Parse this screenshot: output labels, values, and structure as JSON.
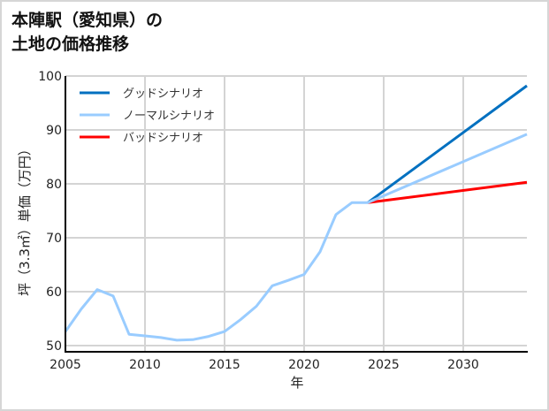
{
  "title": "本陣駅（愛知県）の\n土地の価格推移",
  "chart_data": {
    "type": "line",
    "title": "本陣駅（愛知県）の土地の価格推移",
    "xlabel": "年",
    "ylabel": "坪（3.3㎡）単価（万円）",
    "xlim": [
      2005,
      2034
    ],
    "ylim": [
      48.9,
      100
    ],
    "xticks": [
      2005,
      2010,
      2015,
      2020,
      2025,
      2030
    ],
    "yticks": [
      50,
      60,
      70,
      80,
      90,
      100
    ],
    "grid": true,
    "legend_position": "upper left",
    "series": [
      {
        "name": "グッドシナリオ",
        "color": "#0070c0",
        "x": [
          2024,
          2034
        ],
        "values": [
          76.5,
          98.2
        ]
      },
      {
        "name": "ノーマルシナリオ",
        "color": "#99ccff",
        "x": [
          2005,
          2006,
          2007,
          2008,
          2009,
          2010,
          2011,
          2012,
          2013,
          2014,
          2015,
          2016,
          2017,
          2018,
          2019,
          2020,
          2021,
          2022,
          2023,
          2024,
          2034
        ],
        "values": [
          52.6,
          56.8,
          60.4,
          59.2,
          52.1,
          51.8,
          51.5,
          51.0,
          51.1,
          51.7,
          52.6,
          54.8,
          57.3,
          61.1,
          62.1,
          63.2,
          67.4,
          74.3,
          76.5,
          76.5,
          89.2
        ]
      },
      {
        "name": "バッドシナリオ",
        "color": "#ff0000",
        "x": [
          2024,
          2034
        ],
        "values": [
          76.5,
          80.3
        ]
      }
    ]
  },
  "axis": {
    "xlabel": "年",
    "ylabel": "坪（3.3㎡）単価（万円）",
    "xticks": [
      "2005",
      "2010",
      "2015",
      "2020",
      "2025",
      "2030"
    ],
    "yticks": [
      "100",
      "90",
      "80",
      "70",
      "60",
      "50"
    ]
  },
  "legend": [
    {
      "label": "グッドシナリオ",
      "color": "#0070c0"
    },
    {
      "label": "ノーマルシナリオ",
      "color": "#99ccff"
    },
    {
      "label": "バッドシナリオ",
      "color": "#ff0000"
    }
  ]
}
